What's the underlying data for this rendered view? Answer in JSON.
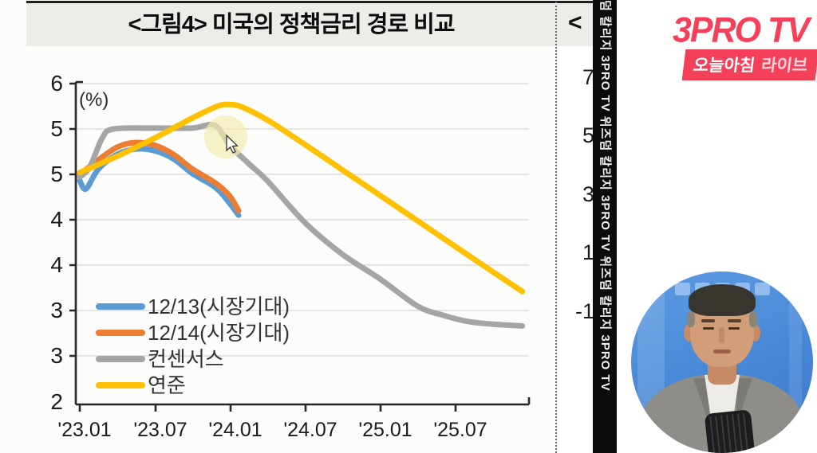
{
  "chart": {
    "title": "<그림4> 미국의 정책금리 경로 비교",
    "unit_label": "(%)",
    "y_axis_labels": [
      "6",
      "5",
      "5",
      "4",
      "4",
      "3",
      "3",
      "2"
    ],
    "x_axis_labels": [
      "'23.01",
      "'23.07",
      "'24.01",
      "'24.07",
      "'25.01",
      "'25.07"
    ],
    "legend": [
      {
        "label": "12/13(시장기대)",
        "color": "#5b9bd5"
      },
      {
        "label": "12/14(시장기대)",
        "color": "#ed7d31"
      },
      {
        "label": "컨센서스",
        "color": "#a5a5a5"
      },
      {
        "label": "연준",
        "color": "#ffc000"
      }
    ]
  },
  "chart_data": {
    "type": "line",
    "title": "<그림4> 미국의 정책금리 경로 비교",
    "ylabel": "(%)",
    "x_tick_labels": [
      "'23.01",
      "'23.07",
      "'24.01",
      "'24.07",
      "'25.01",
      "'25.07"
    ],
    "y_tick_labels_displayed": [
      "6",
      "5",
      "5",
      "4",
      "4",
      "3",
      "3",
      "2"
    ],
    "y_tick_values_actual": [
      6.0,
      5.5,
      5.0,
      4.5,
      4.0,
      3.5,
      3.0,
      2.5
    ],
    "ylim": [
      2.5,
      6.0
    ],
    "grid": true,
    "legend_position": "lower-left-inside",
    "x_unit": "months since 2023-01",
    "series": [
      {
        "name": "12/13(시장기대)",
        "color": "#5b9bd5",
        "x_months": [
          0,
          0.5,
          1.5,
          3,
          4.5,
          6,
          7.5,
          9,
          10.9,
          12,
          12.7
        ],
        "values": [
          4.93,
          4.84,
          5.06,
          5.22,
          5.28,
          5.26,
          5.17,
          5.01,
          4.85,
          4.68,
          4.55
        ]
      },
      {
        "name": "12/14(시장기대)",
        "color": "#ed7d31",
        "x_months": [
          0,
          1.5,
          3,
          4.4,
          6,
          7.5,
          9,
          10.9,
          12,
          12.7
        ],
        "values": [
          5.0,
          5.16,
          5.3,
          5.35,
          5.32,
          5.22,
          5.06,
          4.9,
          4.76,
          4.6
        ]
      },
      {
        "name": "컨센서스",
        "color": "#a5a5a5",
        "x_months": [
          0,
          0.8,
          1.8,
          2.7,
          6,
          9,
          10.8,
          12,
          13.5,
          15,
          18,
          21,
          24,
          27,
          29,
          31,
          33,
          35.4
        ],
        "values": [
          4.97,
          5.08,
          5.4,
          5.5,
          5.51,
          5.51,
          5.54,
          5.32,
          5.12,
          4.93,
          4.47,
          4.12,
          3.85,
          3.55,
          3.45,
          3.38,
          3.35,
          3.33
        ]
      },
      {
        "name": "연준",
        "color": "#ffc000",
        "x_months": [
          0,
          3,
          6,
          9,
          11,
          12,
          13,
          15,
          18,
          21,
          24,
          27,
          30,
          33,
          35.4
        ],
        "values": [
          5.02,
          5.2,
          5.4,
          5.62,
          5.75,
          5.77,
          5.74,
          5.6,
          5.33,
          5.05,
          4.77,
          4.49,
          4.21,
          3.93,
          3.71
        ]
      }
    ]
  },
  "second_chart": {
    "title_fragment": "<그",
    "y_axis_labels": [
      "7",
      "5",
      "3",
      "1",
      "-1"
    ]
  },
  "side_strip": {
    "text": "덤 칼리지   3PRO TV   위즈덤 칼리지   3PRO TV   위즈덤 칼리지   3PRO TV"
  },
  "branding": {
    "logo_text": "3PRO TV",
    "banner_main": "오늘아침",
    "banner_sub": "라이브"
  },
  "colors": {
    "series_blue": "#5b9bd5",
    "series_orange": "#ed7d31",
    "series_gray": "#a5a5a5",
    "series_yellow": "#ffc000",
    "logo_pink": "#f5405a",
    "strip_black": "#0b0b0b",
    "gridline": "#dcdcda",
    "axis": "#262626",
    "cursor_highlight": "#f3ecae"
  }
}
